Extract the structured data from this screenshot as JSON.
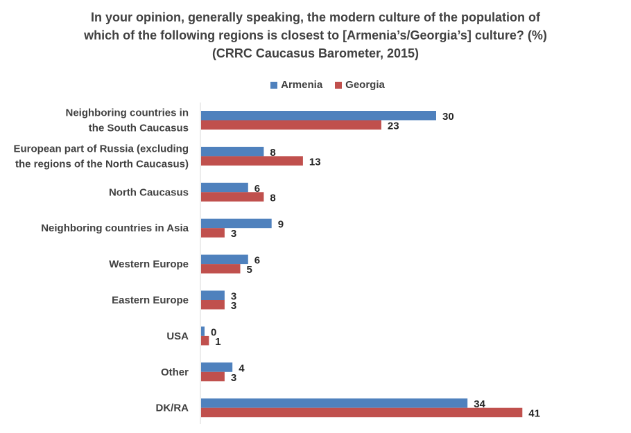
{
  "title_lines": [
    "In your opinion, generally speaking, the modern culture of the population of",
    "which of the following regions is closest to [Armenia’s/Georgia’s] culture? (%)",
    "(CRRC Caucasus Barometer, 2015)"
  ],
  "chart_data": {
    "type": "bar",
    "orientation": "horizontal",
    "title": "In your opinion, generally speaking, the modern culture of the population of which of the following regions is closest to [Armenia’s/Georgia’s] culture? (%) (CRRC Caucasus Barometer, 2015)",
    "xlabel": "",
    "ylabel": "",
    "xlim": [
      0,
      45
    ],
    "grid": false,
    "legend_position": "top",
    "categories": [
      [
        "Neighboring countries in",
        "the South Caucasus"
      ],
      [
        "European part of Russia (excluding",
        "the regions of the North Caucasus)"
      ],
      [
        "North Caucasus"
      ],
      [
        "Neighboring countries in Asia"
      ],
      [
        "Western Europe"
      ],
      [
        "Eastern Europe"
      ],
      [
        "USA"
      ],
      [
        "Other"
      ],
      [
        "DK/RA"
      ]
    ],
    "series": [
      {
        "name": "Armenia",
        "color": "#4F81BD",
        "values": [
          30,
          8,
          6,
          9,
          6,
          3,
          0,
          4,
          34
        ]
      },
      {
        "name": "Georgia",
        "color": "#C0504D",
        "values": [
          23,
          13,
          8,
          3,
          5,
          3,
          1,
          3,
          41
        ]
      }
    ]
  }
}
